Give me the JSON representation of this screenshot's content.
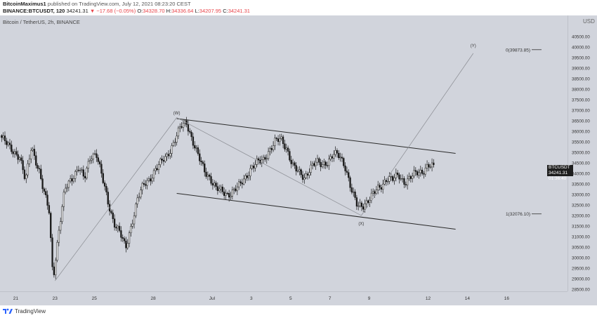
{
  "header": {
    "author": "BitcoinMaximus1",
    "published_text": "published on TradingView.com, July 12, 2021 08:23:20 CEST",
    "symbol": "BINANCE:BTCUSDT, 120",
    "last": "34241.31",
    "change": "▼ −17.68 (−0.05%)",
    "o_label": "O:",
    "o_value": "34328.70",
    "h_label": "H:",
    "h_value": "34336.64",
    "l_label": "L:",
    "l_value": "34207.95",
    "c_label": "C:",
    "c_value": "34241.31"
  },
  "chart_label": "Bitcoin / TetherUS, 2h, BINANCE",
  "footer": {
    "brand": "TradingView"
  },
  "currency": "USD",
  "last_price_tag": {
    "symbol": "BTCUSDT",
    "price": "34241.31",
    "countdown": "01:36:40"
  },
  "colors": {
    "plot_bg": "#d1d4dc",
    "candle": "#1a1a1a",
    "trend": "#2a2a2a",
    "wave_line": "#8a8c92",
    "price_tag_bg": "#1e1e1e",
    "down": "#e8444a"
  },
  "chart_data": {
    "type": "candlestick",
    "title": "Bitcoin / TetherUS, 2h, BINANCE",
    "ylim": [
      28400,
      41500
    ],
    "y_ticks": [
      28500,
      29000,
      29500,
      30000,
      30500,
      31000,
      31500,
      32000,
      32500,
      33000,
      33500,
      34000,
      34500,
      35000,
      35500,
      36000,
      36500,
      37000,
      37500,
      38000,
      38500,
      39000,
      39500,
      40000,
      40500
    ],
    "x_ticks": [
      {
        "label": "21",
        "day": -9
      },
      {
        "label": "23",
        "day": -7
      },
      {
        "label": "25",
        "day": -5
      },
      {
        "label": "28",
        "day": -2
      },
      {
        "label": "Jul",
        "day": 1
      },
      {
        "label": "3",
        "day": 3
      },
      {
        "label": "5",
        "day": 5
      },
      {
        "label": "7",
        "day": 7
      },
      {
        "label": "9",
        "day": 9
      },
      {
        "label": "12",
        "day": 12
      },
      {
        "label": "14",
        "day": 14
      },
      {
        "label": "16",
        "day": 16
      }
    ],
    "xlim_days": [
      -9.8,
      19.1
    ],
    "price_path": [
      [
        -9.8,
        35800
      ],
      [
        -9.3,
        35200
      ],
      [
        -8.8,
        34800
      ],
      [
        -8.5,
        33600
      ],
      [
        -8.2,
        35300
      ],
      [
        -7.8,
        34100
      ],
      [
        -7.6,
        33200
      ],
      [
        -7.3,
        32200
      ],
      [
        -7.1,
        29000
      ],
      [
        -6.8,
        31300
      ],
      [
        -6.5,
        33200
      ],
      [
        -6.2,
        33700
      ],
      [
        -5.8,
        34300
      ],
      [
        -5.5,
        33700
      ],
      [
        -5.2,
        34800
      ],
      [
        -4.9,
        35000
      ],
      [
        -4.6,
        33800
      ],
      [
        -4.3,
        32600
      ],
      [
        -4.0,
        31700
      ],
      [
        -3.7,
        31200
      ],
      [
        -3.4,
        30400
      ],
      [
        -3.1,
        31600
      ],
      [
        -2.8,
        32800
      ],
      [
        -2.5,
        33400
      ],
      [
        -2.2,
        33700
      ],
      [
        -1.9,
        34200
      ],
      [
        -1.6,
        34500
      ],
      [
        -1.3,
        34800
      ],
      [
        -1.0,
        35400
      ],
      [
        -0.6,
        36200
      ],
      [
        -0.3,
        36400
      ],
      [
        0.0,
        35600
      ],
      [
        0.3,
        34800
      ],
      [
        0.6,
        34100
      ],
      [
        0.9,
        33800
      ],
      [
        1.2,
        33300
      ],
      [
        1.5,
        33100
      ],
      [
        1.8,
        33000
      ],
      [
        2.1,
        33200
      ],
      [
        2.4,
        33400
      ],
      [
        2.7,
        33800
      ],
      [
        3.0,
        34300
      ],
      [
        3.3,
        34500
      ],
      [
        3.6,
        34600
      ],
      [
        3.9,
        35100
      ],
      [
        4.2,
        35500
      ],
      [
        4.5,
        35600
      ],
      [
        4.8,
        35200
      ],
      [
        5.1,
        34400
      ],
      [
        5.4,
        34000
      ],
      [
        5.7,
        33800
      ],
      [
        6.0,
        34300
      ],
      [
        6.3,
        34500
      ],
      [
        6.6,
        34400
      ],
      [
        6.9,
        34600
      ],
      [
        7.2,
        34900
      ],
      [
        7.5,
        34800
      ],
      [
        7.8,
        34300
      ],
      [
        8.1,
        33200
      ],
      [
        8.4,
        32400
      ],
      [
        8.7,
        32500
      ],
      [
        9.0,
        32800
      ],
      [
        9.3,
        33100
      ],
      [
        9.6,
        33400
      ],
      [
        9.9,
        33800
      ],
      [
        10.2,
        33700
      ],
      [
        10.5,
        33900
      ],
      [
        10.8,
        33600
      ],
      [
        11.1,
        33800
      ],
      [
        11.4,
        34000
      ],
      [
        11.7,
        34100
      ],
      [
        12.0,
        34400
      ],
      [
        12.3,
        34250
      ]
    ],
    "trend_lines": [
      {
        "name": "upper-channel",
        "points": [
          [
            -0.8,
            36600
          ],
          [
            13.4,
            34950
          ]
        ]
      },
      {
        "name": "lower-channel",
        "points": [
          [
            -0.8,
            33050
          ],
          [
            13.4,
            31350
          ]
        ]
      },
      {
        "name": "wave-w-x",
        "points": [
          [
            -0.8,
            36650
          ],
          [
            8.6,
            32000
          ]
        ]
      },
      {
        "name": "wave-start-w",
        "points": [
          [
            -7.0,
            28900
          ],
          [
            -0.8,
            36650
          ]
        ]
      },
      {
        "name": "wave-x-y",
        "points": [
          [
            8.6,
            32000
          ],
          [
            14.3,
            39700
          ]
        ]
      }
    ],
    "wave_labels": [
      {
        "text": "(W)",
        "day": -0.8,
        "price": 36800
      },
      {
        "text": "(X)",
        "day": 8.6,
        "price": 31550
      },
      {
        "text": "(Y)",
        "day": 14.3,
        "price": 40000
      }
    ],
    "fib_levels": [
      {
        "label": "0(39873.85)",
        "price": 39873.85
      },
      {
        "label": "1(32076.10)",
        "price": 32076.1
      }
    ]
  }
}
